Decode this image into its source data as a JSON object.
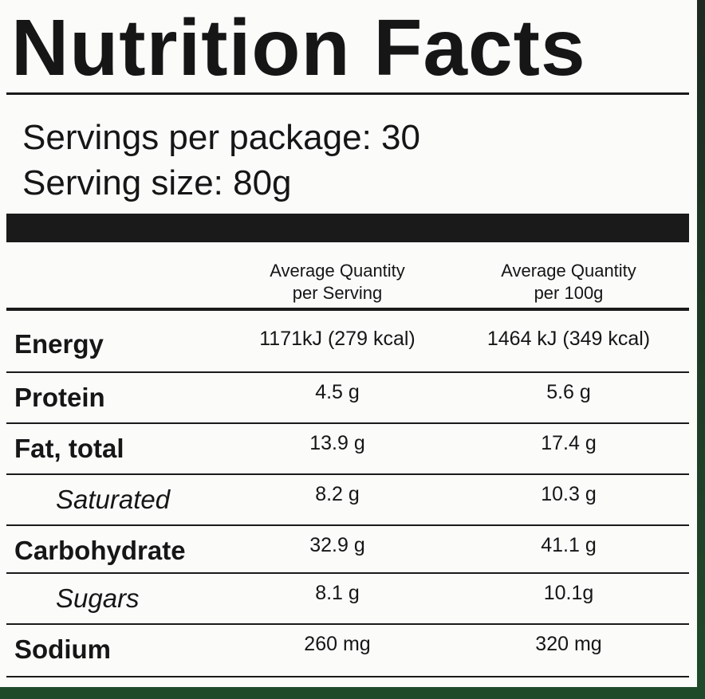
{
  "header": {
    "title": "Nutrition Facts"
  },
  "servings": {
    "per_package": "Servings per package: 30",
    "serving_size": "Serving size: 80g"
  },
  "table": {
    "columns": [
      "Average Quantity\nper Serving",
      "Average Quantity\nper 100g"
    ],
    "rows": [
      [
        "Energy",
        "1171kJ (279 kcal)",
        "1464 kJ (349 kcal)"
      ],
      [
        "Protein",
        "4.5 g",
        "5.6 g"
      ],
      [
        "Fat, total",
        "13.9 g",
        "17.4 g"
      ],
      [
        "Saturated",
        "8.2 g",
        "10.3 g"
      ],
      [
        "Carbohydrate",
        "32.9 g",
        "41.1 g"
      ],
      [
        "Sugars",
        "8.1 g",
        "10.1g"
      ],
      [
        "Sodium",
        "260 mg",
        "320 mg"
      ]
    ]
  }
}
